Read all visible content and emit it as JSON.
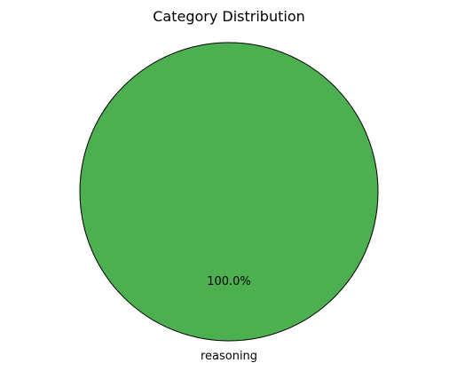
{
  "chart_data": {
    "type": "pie",
    "title": "Category Distribution",
    "categories": [
      "reasoning"
    ],
    "values": [
      100
    ],
    "percent_labels": [
      "100.0%"
    ],
    "colors": [
      "#4caf50"
    ],
    "edge_color": "#000000"
  }
}
